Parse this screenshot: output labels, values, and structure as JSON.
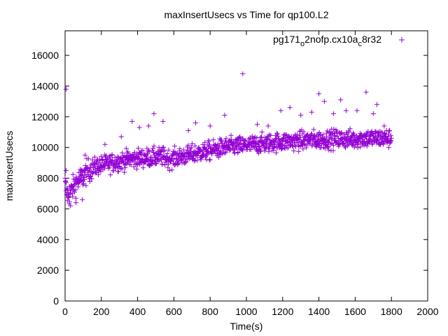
{
  "chart_data": {
    "type": "scatter",
    "title": "maxInsertUsecs vs Time for qp100.L2",
    "xlabel": "Time(s)",
    "ylabel": "maxInsertUsecs",
    "xlim": [
      0,
      2000
    ],
    "ylim": [
      0,
      17600
    ],
    "x_ticks": [
      0,
      200,
      400,
      600,
      800,
      1000,
      1200,
      1400,
      1600,
      1800,
      2000
    ],
    "y_ticks": [
      0,
      2000,
      4000,
      6000,
      8000,
      10000,
      12000,
      14000,
      16000
    ],
    "grid": false,
    "legend_position": "top-right",
    "marker": "plus",
    "series_color": "#9400d3",
    "series": [
      {
        "name": "pg171_o2nofp.cx10a_c8r32",
        "name_display": {
          "parts": [
            "pg171",
            "o",
            "2nofp.cx10a",
            "c",
            "8r32"
          ],
          "subscript_parts": [
            1,
            3
          ]
        },
        "sampled_points": {
          "x": [
            0,
            10,
            20,
            30,
            40,
            50,
            60,
            70,
            80,
            90,
            100,
            120,
            140,
            160,
            180,
            200,
            220,
            240,
            260,
            280,
            300,
            320,
            340,
            360,
            380,
            400,
            420,
            440,
            460,
            480,
            500,
            520,
            540,
            560,
            580,
            600,
            620,
            640,
            660,
            680,
            700,
            720,
            740,
            760,
            780,
            800,
            820,
            840,
            860,
            880,
            900,
            920,
            940,
            960,
            980,
            1000,
            1020,
            1040,
            1060,
            1080,
            1100,
            1120,
            1140,
            1160,
            1180,
            1200,
            1220,
            1240,
            1260,
            1280,
            1300,
            1320,
            1340,
            1360,
            1380,
            1400,
            1420,
            1440,
            1460,
            1480,
            1500,
            1520,
            1540,
            1560,
            1580,
            1600,
            1620,
            1640,
            1660,
            1680,
            1700,
            1720,
            1740,
            1760,
            1780,
            1800
          ],
          "y": [
            7600,
            7000,
            6900,
            7100,
            7300,
            7500,
            7700,
            7800,
            7900,
            8000,
            8100,
            8400,
            8600,
            8700,
            8800,
            8850,
            8900,
            8950,
            9000,
            9050,
            9100,
            9150,
            9200,
            9250,
            9250,
            9300,
            9300,
            9350,
            9350,
            9350,
            9350,
            9400,
            9400,
            9300,
            9250,
            9300,
            9350,
            9400,
            9450,
            9500,
            9550,
            9600,
            9650,
            9700,
            9750,
            9800,
            9850,
            9900,
            9950,
            10000,
            10050,
            10050,
            10100,
            10100,
            10100,
            10150,
            10150,
            10200,
            10200,
            10250,
            10250,
            10300,
            10300,
            10350,
            10350,
            10350,
            10400,
            10400,
            10400,
            10450,
            10450,
            10450,
            10500,
            10500,
            10500,
            10500,
            10500,
            10550,
            10550,
            10550,
            10550,
            10550,
            10550,
            10550,
            10550,
            10550,
            10600,
            10600,
            10600,
            10600,
            10600,
            10600,
            10600,
            10600,
            10600,
            10600
          ]
        },
        "outliers": [
          {
            "x": 5,
            "y": 13800
          },
          {
            "x": 5,
            "y": 8500
          },
          {
            "x": 110,
            "y": 9500
          },
          {
            "x": 220,
            "y": 10200
          },
          {
            "x": 310,
            "y": 10700
          },
          {
            "x": 370,
            "y": 11700
          },
          {
            "x": 410,
            "y": 11300
          },
          {
            "x": 460,
            "y": 11400
          },
          {
            "x": 540,
            "y": 11700
          },
          {
            "x": 490,
            "y": 12200
          },
          {
            "x": 680,
            "y": 11100
          },
          {
            "x": 720,
            "y": 11600
          },
          {
            "x": 800,
            "y": 11400
          },
          {
            "x": 880,
            "y": 12100
          },
          {
            "x": 980,
            "y": 14800
          },
          {
            "x": 1060,
            "y": 11500
          },
          {
            "x": 1120,
            "y": 11400
          },
          {
            "x": 1190,
            "y": 12400
          },
          {
            "x": 1240,
            "y": 12600
          },
          {
            "x": 1300,
            "y": 12100
          },
          {
            "x": 1360,
            "y": 12300
          },
          {
            "x": 1400,
            "y": 13500
          },
          {
            "x": 1430,
            "y": 13000
          },
          {
            "x": 1480,
            "y": 12200
          },
          {
            "x": 1520,
            "y": 13100
          },
          {
            "x": 1550,
            "y": 12400
          },
          {
            "x": 1610,
            "y": 12400
          },
          {
            "x": 1660,
            "y": 13600
          },
          {
            "x": 1700,
            "y": 12200
          },
          {
            "x": 1720,
            "y": 12800
          },
          {
            "x": 1760,
            "y": 11400
          },
          {
            "x": 60,
            "y": 6400
          },
          {
            "x": 30,
            "y": 6200
          },
          {
            "x": 95,
            "y": 6600
          }
        ]
      }
    ]
  }
}
